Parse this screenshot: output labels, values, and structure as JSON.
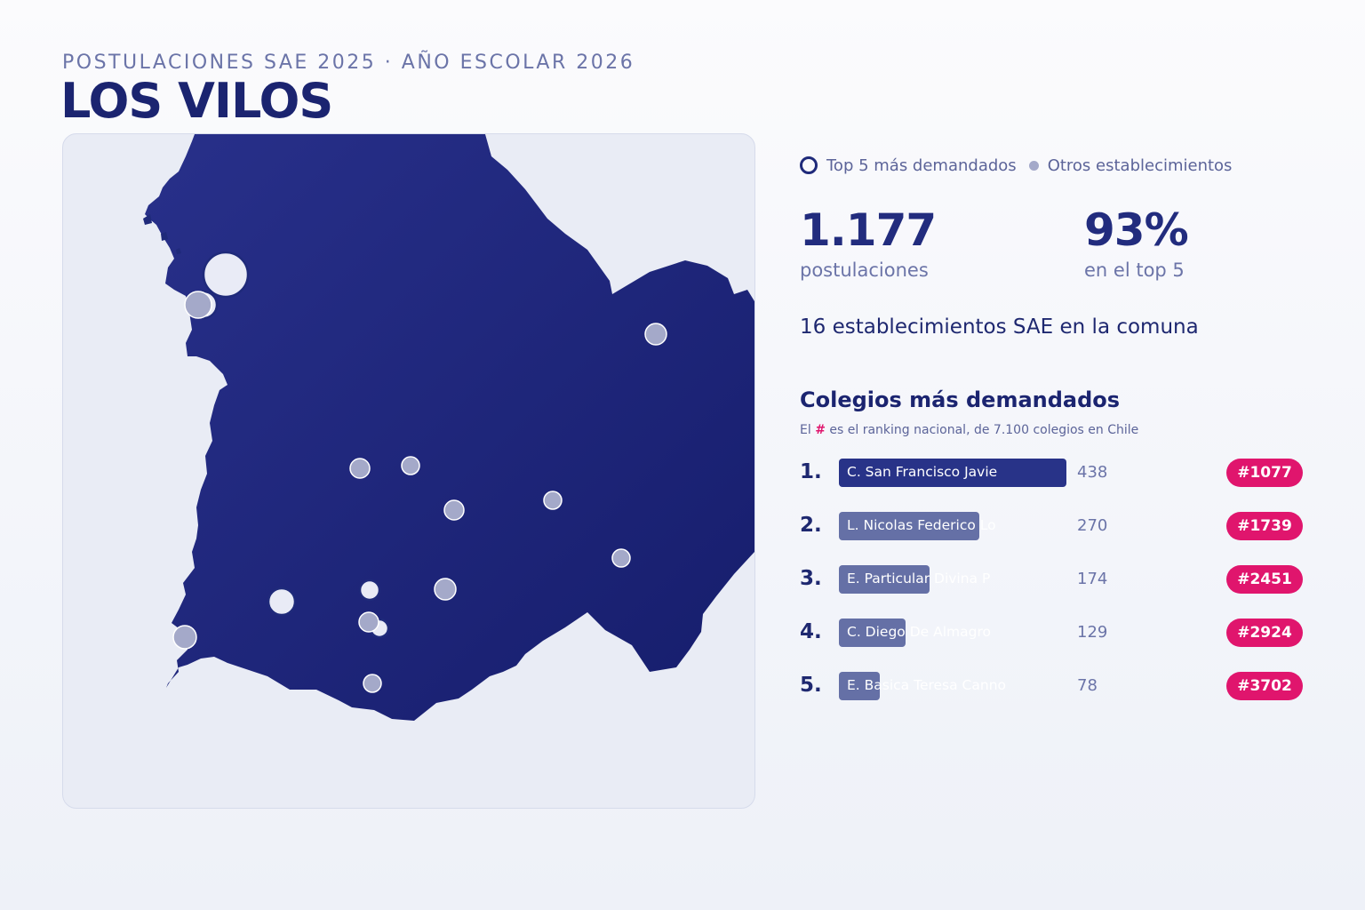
{
  "header": {
    "kicker": "POSTULACIONES SAE 2025 · AÑO ESCOLAR 2026",
    "title": "LOS VILOS"
  },
  "colors": {
    "territory": "#1f2a7a",
    "top5_fill": "#e9ebf6",
    "other_fill": "#a4a9c9",
    "badge": "#e0156d",
    "accent_text": "#1b2470"
  },
  "legend": {
    "top5_label": "Top 5 más demandados",
    "others_label": "Otros establecimientos"
  },
  "stats": {
    "total_value": "1.177",
    "total_label": "postulaciones",
    "pct_value": "93%",
    "pct_label": "en el top 5",
    "schools_line": "16 establecimientos SAE en la comuna"
  },
  "ranking": {
    "title": "Colegios más demandados",
    "note_prefix": "El",
    "note_hash": "#",
    "note_suffix": "es el ranking nacional, de 7.100 colegios en Chile",
    "max_value": 438,
    "items": [
      {
        "pos": "1.",
        "name": "C. San Francisco Javie",
        "value": 438,
        "value_label": "438",
        "badge": "#1077"
      },
      {
        "pos": "2.",
        "name": "L. Nicolas Federico Lo",
        "value": 270,
        "value_label": "270",
        "badge": "#1739"
      },
      {
        "pos": "3.",
        "name": "E. Particular Divina P",
        "value": 174,
        "value_label": "174",
        "badge": "#2451"
      },
      {
        "pos": "4.",
        "name": "C. Diego De Almagro",
        "value": 129,
        "value_label": "129",
        "badge": "#2924"
      },
      {
        "pos": "5.",
        "name": "E. Basica Teresa Canno",
        "value": 78,
        "value_label": "78",
        "badge": "#3702"
      }
    ]
  },
  "map": {
    "markers": [
      {
        "kind": "top5",
        "rank": 1
      },
      {
        "kind": "top5",
        "rank": 2
      },
      {
        "kind": "top5",
        "rank": 3
      },
      {
        "kind": "top5",
        "rank": 4
      },
      {
        "kind": "top5",
        "rank": 5
      },
      {
        "kind": "other"
      },
      {
        "kind": "other"
      },
      {
        "kind": "other"
      },
      {
        "kind": "other"
      },
      {
        "kind": "other"
      },
      {
        "kind": "other"
      },
      {
        "kind": "other"
      },
      {
        "kind": "other"
      },
      {
        "kind": "other"
      },
      {
        "kind": "other"
      },
      {
        "kind": "other"
      }
    ]
  }
}
